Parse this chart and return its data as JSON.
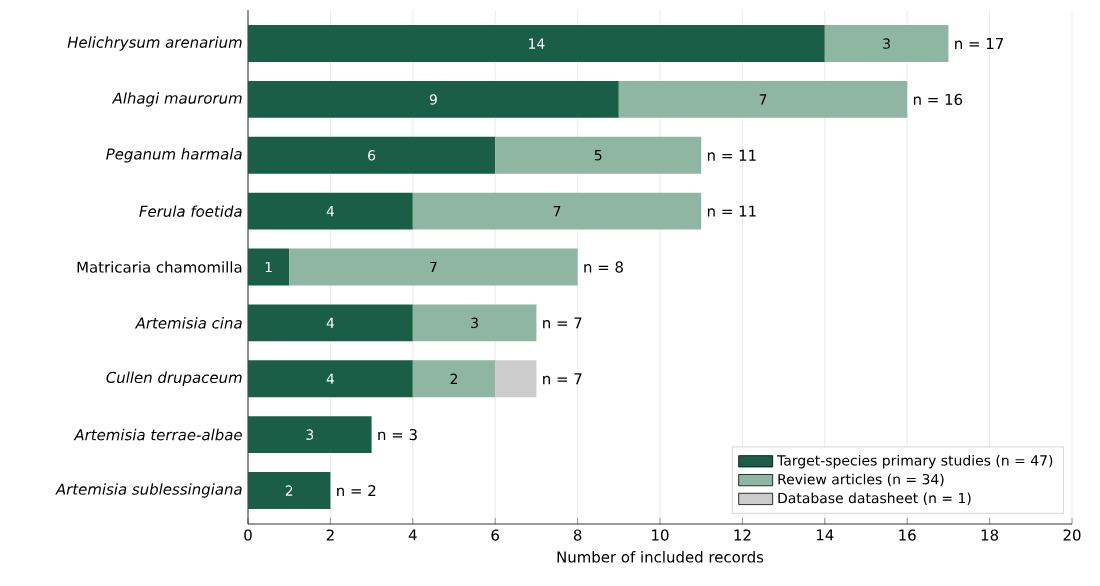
{
  "chart_data": {
    "type": "bar",
    "orientation": "horizontal",
    "stacked": true,
    "xlabel": "Number of included records",
    "categories": [
      "*Helichrysum arenarium*",
      "*Alhagi maurorum*",
      "*Peganum harmala*",
      "*Ferula foetida*",
      "Matricaria chamomilla",
      "*Artemisia cina*",
      "*Cullen drupaceum*",
      "*Artemisia terrae-albae*",
      "*Artemisia sublessingiana*"
    ],
    "series": [
      {
        "name": "Target-species primary studies (n = 47)",
        "color": "#1b5e48",
        "values": [
          14,
          9,
          6,
          4,
          1,
          4,
          4,
          3,
          2
        ],
        "value_labels": [
          "14",
          "9",
          "6",
          "4",
          "1",
          "4",
          "4",
          "3",
          "2"
        ]
      },
      {
        "name": "Review articles (n = 34)",
        "color": "#8fb5a3",
        "values": [
          3,
          7,
          5,
          7,
          7,
          3,
          2,
          null,
          null
        ],
        "value_labels": [
          "3",
          "7",
          "5",
          "7",
          "7",
          "3",
          "2",
          null,
          null
        ]
      },
      {
        "name": "Database datasheet (n = 1)",
        "color": "#cccccc",
        "values": [
          null,
          null,
          null,
          null,
          null,
          null,
          1,
          null,
          null
        ],
        "value_labels": [
          null,
          null,
          null,
          null,
          null,
          null,
          null,
          null,
          null
        ]
      }
    ],
    "totals": [
      "n = 17",
      "n = 16",
      "n = 11",
      "n = 11",
      "n = 8",
      "n = 7",
      "n = 7",
      "n = 3",
      "n = 2"
    ],
    "xlim": [
      0,
      20
    ],
    "xticks": [
      0,
      2,
      4,
      6,
      8,
      10,
      12,
      14,
      16,
      18,
      20
    ],
    "grid": "x",
    "legend": "bottom right"
  }
}
